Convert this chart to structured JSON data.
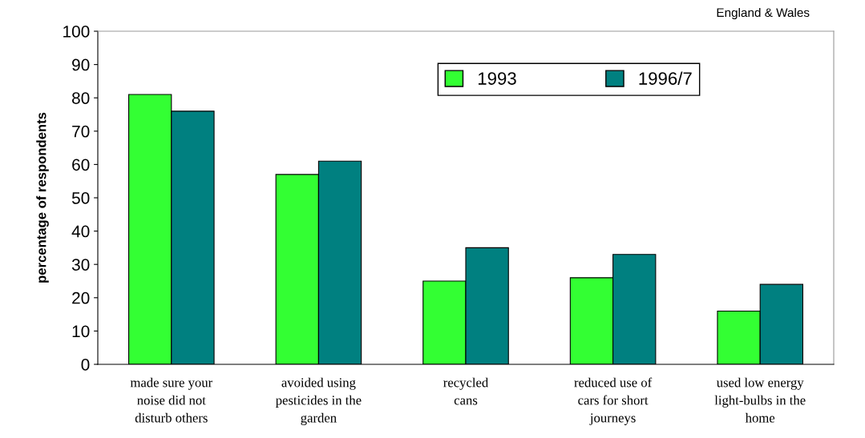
{
  "chart_data": {
    "type": "bar",
    "ylabel": "percentage of respondents",
    "annotations": [
      "England & Wales"
    ],
    "categories": [
      "made sure your\nnoise did not\ndisturb others",
      "avoided using\npesticides in the\ngarden",
      "recycled\ncans",
      "reduced use of\ncars for short\njourneys",
      "used low energy\nlight-bulbs in the\nhome"
    ],
    "series": [
      {
        "name": "1993",
        "color": "#33ff33",
        "values": [
          81,
          57,
          25,
          26,
          16
        ]
      },
      {
        "name": "1996/7",
        "color": "#008080",
        "values": [
          76,
          61,
          35,
          33,
          24
        ]
      }
    ],
    "ylim": [
      0,
      100
    ],
    "yticks": [
      0,
      10,
      20,
      30,
      40,
      50,
      60,
      70,
      80,
      90,
      100
    ],
    "grid": false,
    "legend": "top"
  }
}
